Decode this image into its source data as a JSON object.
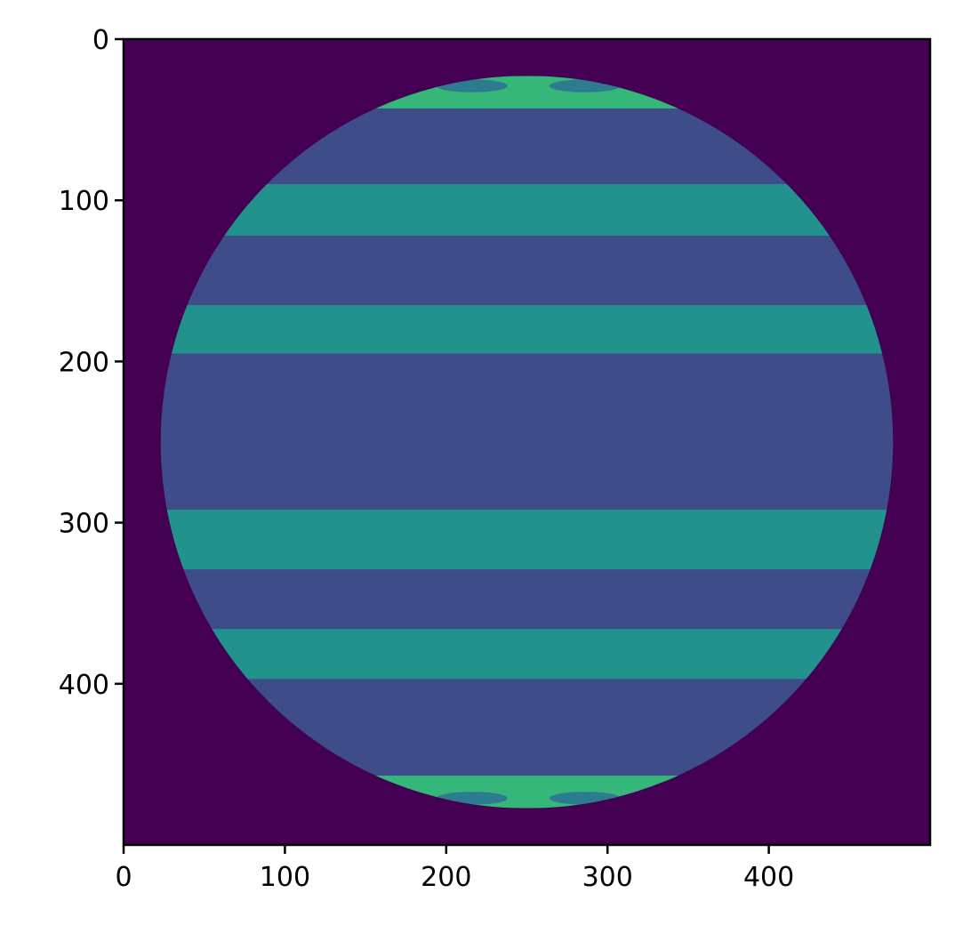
{
  "chart_data": {
    "type": "heatmap",
    "title": "",
    "xlabel": "",
    "ylabel": "",
    "xlim": [
      0,
      500
    ],
    "ylim": [
      500,
      0
    ],
    "y_axis_inverted": true,
    "grid": false,
    "legend": "none",
    "colormap": "viridis",
    "x_ticks": [
      0,
      100,
      200,
      300,
      400
    ],
    "x_tick_labels": [
      "0",
      "100",
      "200",
      "300",
      "400"
    ],
    "y_ticks": [
      0,
      100,
      200,
      300,
      400
    ],
    "y_tick_labels": [
      "0",
      "100",
      "200",
      "300",
      "400"
    ],
    "background_color": "#440154",
    "disk": {
      "center_x": 250,
      "center_y": 250,
      "radius": 227,
      "color": "#3e4c8a"
    },
    "stripes": [
      {
        "y_start": 90,
        "y_end": 122,
        "color": "#21928c"
      },
      {
        "y_start": 165,
        "y_end": 195,
        "color": "#21928c"
      },
      {
        "y_start": 292,
        "y_end": 329,
        "color": "#21928c"
      },
      {
        "y_start": 366,
        "y_end": 397,
        "color": "#21928c"
      }
    ],
    "caps": [
      {
        "y_start": 23,
        "y_end": 43,
        "color": "#35b779"
      },
      {
        "y_start": 457,
        "y_end": 477,
        "color": "#35b779"
      }
    ],
    "spots": [
      {
        "cx": 216,
        "cy": 29,
        "rx": 22,
        "ry": 4,
        "color": "#2c7b8e"
      },
      {
        "cx": 286,
        "cy": 29,
        "rx": 22,
        "ry": 4,
        "color": "#2c7b8e"
      },
      {
        "cx": 216,
        "cy": 471,
        "rx": 22,
        "ry": 4,
        "color": "#2c7b8e"
      },
      {
        "cx": 286,
        "cy": 471,
        "rx": 22,
        "ry": 4,
        "color": "#2c7b8e"
      }
    ]
  }
}
